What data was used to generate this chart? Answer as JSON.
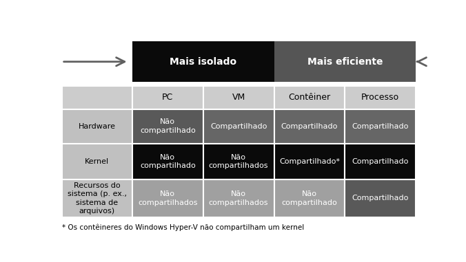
{
  "title_left": "Mais isolado",
  "title_right": "Mais eficiente",
  "col_headers": [
    "PC",
    "VM",
    "Contêiner",
    "Processo"
  ],
  "row_headers": [
    "Hardware",
    "Kernel",
    "Recursos do\nsistema (p. ex.,\nsistema de\narquivos)"
  ],
  "cells": [
    [
      "Não\ncompartilhado",
      "Compartilhado",
      "Compartilhado",
      "Compartilhado"
    ],
    [
      "Não\ncompartilhado",
      "Não\ncompartilhados",
      "Compartilhado*",
      "Compartilhado"
    ],
    [
      "Não\ncompartilhados",
      "Não\ncompartilhados",
      "Não\ncompartilhado",
      "Compartilhado"
    ]
  ],
  "cell_bg_colors": [
    [
      "#595959",
      "#666666",
      "#666666",
      "#666666"
    ],
    [
      "#0a0a0a",
      "#0a0a0a",
      "#0a0a0a",
      "#0a0a0a"
    ],
    [
      "#a0a0a0",
      "#a0a0a0",
      "#a0a0a0",
      "#595959"
    ]
  ],
  "cell_text_colors": [
    [
      "#ffffff",
      "#ffffff",
      "#ffffff",
      "#ffffff"
    ],
    [
      "#ffffff",
      "#ffffff",
      "#ffffff",
      "#ffffff"
    ],
    [
      "#ffffff",
      "#ffffff",
      "#ffffff",
      "#ffffff"
    ]
  ],
  "col_header_bg": "#cccccc",
  "row_header_bg": "#c0c0c0",
  "header_left_bg": "#0a0a0a",
  "header_right_bg": "#555555",
  "header_text_color": "#ffffff",
  "arrow_color": "#606060",
  "footnote": "* Os contêineres do Windows Hyper-V não compartilham um kernel",
  "bg_color": "#ffffff"
}
